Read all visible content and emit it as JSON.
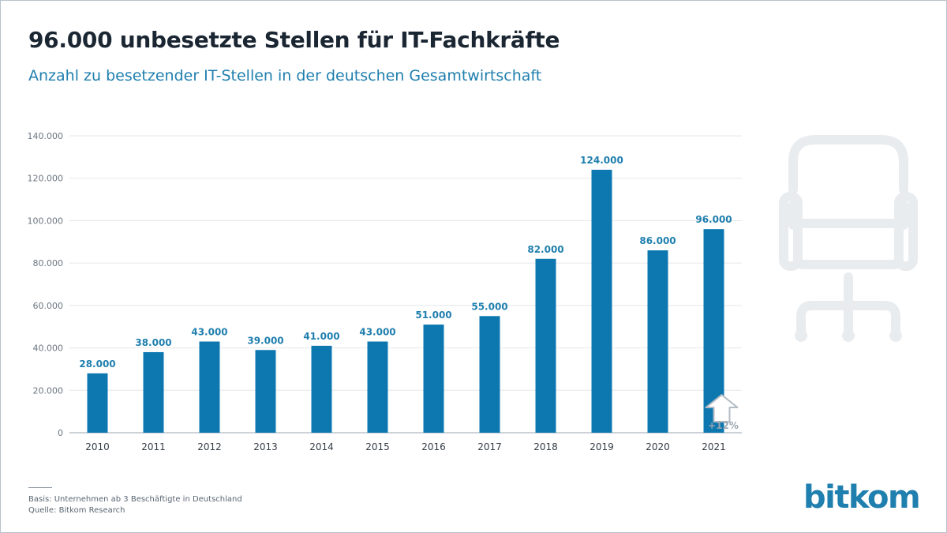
{
  "header": {
    "title": "96.000 unbesetzte Stellen für IT-Fachkräfte",
    "subtitle": "Anzahl zu besetzender IT-Stellen in der deutschen Gesamtwirtschaft"
  },
  "chart_data": {
    "type": "bar",
    "categories": [
      "2010",
      "2011",
      "2012",
      "2013",
      "2014",
      "2015",
      "2016",
      "2017",
      "2018",
      "2019",
      "2020",
      "2021"
    ],
    "values": [
      28000,
      38000,
      43000,
      39000,
      41000,
      43000,
      51000,
      55000,
      82000,
      124000,
      86000,
      96000
    ],
    "value_labels": [
      "28.000",
      "38.000",
      "43.000",
      "39.000",
      "41.000",
      "43.000",
      "51.000",
      "55.000",
      "82.000",
      "124.000",
      "86.000",
      "96.000"
    ],
    "ylim": [
      0,
      140000
    ],
    "y_ticks": [
      0,
      20000,
      40000,
      60000,
      80000,
      100000,
      120000,
      140000
    ],
    "y_tick_labels": [
      "0",
      "20.000",
      "40.000",
      "60.000",
      "80.000",
      "100.000",
      "120.000",
      "140.000"
    ],
    "grid": true,
    "bar_color": "#0d78b0",
    "annotation": "+12%"
  },
  "footer": {
    "basis": "Basis: Unternehmen ab 3 Beschäftigte in Deutschland",
    "source": "Quelle: Bitkom Research"
  },
  "logo": "bitkom",
  "icons": {
    "chair": "office-chair-icon",
    "arrow": "up-arrow-icon"
  },
  "colors": {
    "accent": "#1f7fae",
    "title": "#1b2633",
    "grid": "#e3e7eb",
    "icon": "#e9ecef"
  }
}
